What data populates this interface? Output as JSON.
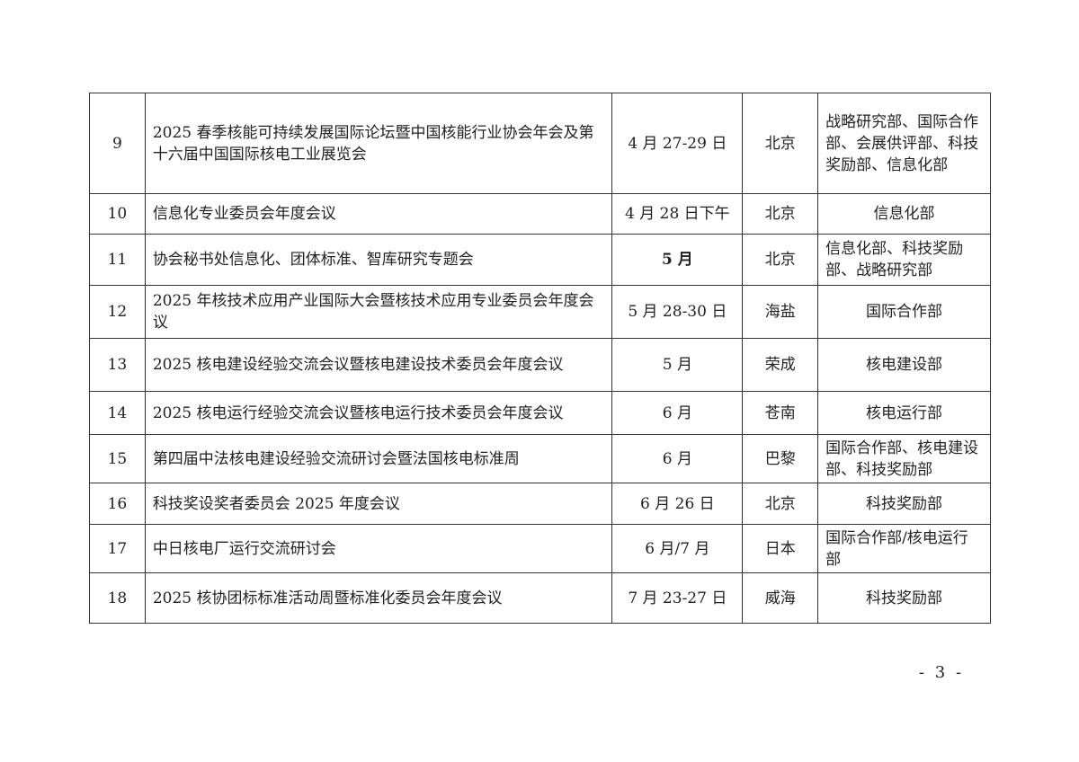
{
  "rows": [
    {
      "no": "9",
      "name": "2025 春季核能可持续发展国际论坛暨中国核能行业协会年会及第十六届中国国际核电工业展览会",
      "date": "4 月 27-29 日",
      "location": "北京",
      "dept": "战略研究部、国际合作部、会展供评部、科技奖励部、信息化部"
    },
    {
      "no": "10",
      "name": "信息化专业委员会年度会议",
      "date": "4 月 28 日下午",
      "location": "北京",
      "dept": "信息化部"
    },
    {
      "no": "11",
      "name": "协会秘书处信息化、团体标准、智库研究专题会",
      "date": "5 月",
      "location": "北京",
      "dept": "信息化部、科技奖励部、战略研究部"
    },
    {
      "no": "12",
      "name": "2025 年核技术应用产业国际大会暨核技术应用专业委员会年度会议",
      "date": "5 月 28-30 日",
      "location": "海盐",
      "dept": "国际合作部"
    },
    {
      "no": "13",
      "name": "2025 核电建设经验交流会议暨核电建设技术委员会年度会议",
      "date": "5 月",
      "location": "荣成",
      "dept": "核电建设部"
    },
    {
      "no": "14",
      "name": "2025 核电运行经验交流会议暨核电运行技术委员会年度会议",
      "date": "6 月",
      "location": "苍南",
      "dept": "核电运行部"
    },
    {
      "no": "15",
      "name": "第四届中法核电建设经验交流研讨会暨法国核电标准周",
      "date": "6 月",
      "location": "巴黎",
      "dept": "国际合作部、核电建设部、科技奖励部"
    },
    {
      "no": "16",
      "name": "科技奖设奖者委员会 2025 年度会议",
      "date": "6 月 26 日",
      "location": "北京",
      "dept": "科技奖励部"
    },
    {
      "no": "17",
      "name": "中日核电厂运行交流研讨会",
      "date": "6 月/7 月",
      "location": "日本",
      "dept": "国际合作部/核电运行部"
    },
    {
      "no": "18",
      "name": "2025 核协团标标准活动周暨标准化委员会年度会议",
      "date": "7 月 23-27 日",
      "location": "威海",
      "dept": "科技奖励部"
    }
  ],
  "page_number": "- 3 -"
}
